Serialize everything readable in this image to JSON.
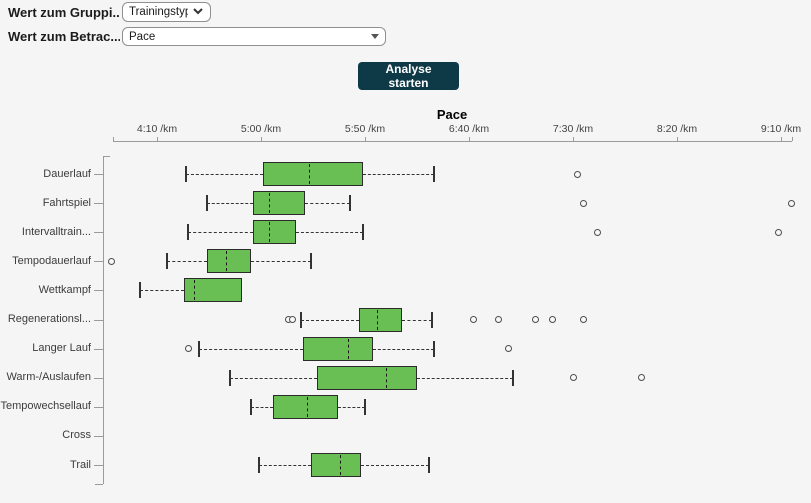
{
  "controls": {
    "group_label": "Wert zum Gruppi...",
    "group_value": "Trainingstyp",
    "measure_label": "Wert zum Betrac...",
    "measure_value": "Pace",
    "analyze_button": "Analyse starten"
  },
  "chart_data": {
    "type": "boxplot",
    "orientation": "horizontal",
    "title": "Pace",
    "x_unit": "/km",
    "x_ticks": [
      "4:10 /km",
      "5:00 /km",
      "5:50 /km",
      "6:40 /km",
      "7:30 /km",
      "8:20 /km",
      "9:10 /km"
    ],
    "x_axis_range_pace": [
      "4:00",
      "9:15"
    ],
    "grid": false,
    "rows": [
      {
        "label": "Dauerlauf",
        "min": "4:24",
        "q1": "5:01",
        "median": "5:23",
        "q3": "5:49",
        "max": "6:23",
        "outliers": [
          "7:32"
        ]
      },
      {
        "label": "Fahrtspiel",
        "min": "4:34",
        "q1": "4:56",
        "median": "5:04",
        "q3": "5:21",
        "max": "5:43",
        "outliers": [
          "7:35",
          "9:15"
        ]
      },
      {
        "label": "Intervalltrain...",
        "min": "4:25",
        "q1": "4:56",
        "median": "5:04",
        "q3": "5:17",
        "max": "5:49",
        "outliers": [
          "7:42",
          "9:09"
        ]
      },
      {
        "label": "Tempodauerlauf",
        "min": "4:15",
        "q1": "4:34",
        "median": "4:43",
        "q3": "4:55",
        "max": "5:24",
        "outliers": [
          "3:48"
        ]
      },
      {
        "label": "Wettkampf",
        "min": "4:02",
        "q1": "4:23",
        "median": "4:28",
        "q3": "4:51",
        "max": "4:51",
        "outliers": []
      },
      {
        "label": "Regenerationsl...",
        "min": "5:19",
        "q1": "5:47",
        "median": "5:56",
        "q3": "6:08",
        "max": "6:22",
        "outliers": [
          "5:13",
          "5:15",
          "6:42",
          "6:54",
          "7:12",
          "7:20",
          "7:35"
        ]
      },
      {
        "label": "Langer Lauf",
        "min": "4:30",
        "q1": "5:20",
        "median": "5:42",
        "q3": "5:54",
        "max": "6:23",
        "outliers": [
          "4:25",
          "6:59"
        ]
      },
      {
        "label": "Warm-/Auslaufen",
        "min": "4:45",
        "q1": "5:27",
        "median": "6:00",
        "q3": "6:15",
        "max": "7:01",
        "outliers": [
          "7:30",
          "8:03"
        ]
      },
      {
        "label": "Tempowechsellauf",
        "min": "4:55",
        "q1": "5:06",
        "median": "5:22",
        "q3": "5:37",
        "max": "5:50",
        "outliers": []
      },
      {
        "label": "Cross",
        "min": null,
        "q1": null,
        "median": null,
        "q3": null,
        "max": null,
        "outliers": []
      },
      {
        "label": "Trail",
        "min": "4:59",
        "q1": "5:24",
        "median": "5:38",
        "q3": "5:48",
        "max": "6:21",
        "outliers": []
      }
    ]
  },
  "colors": {
    "background": "#f5f5f5",
    "box_fill": "#6abf54",
    "box_stroke": "#2b2b2b",
    "button_bg": "#0e3a47",
    "axis": "#9b9b9b"
  }
}
